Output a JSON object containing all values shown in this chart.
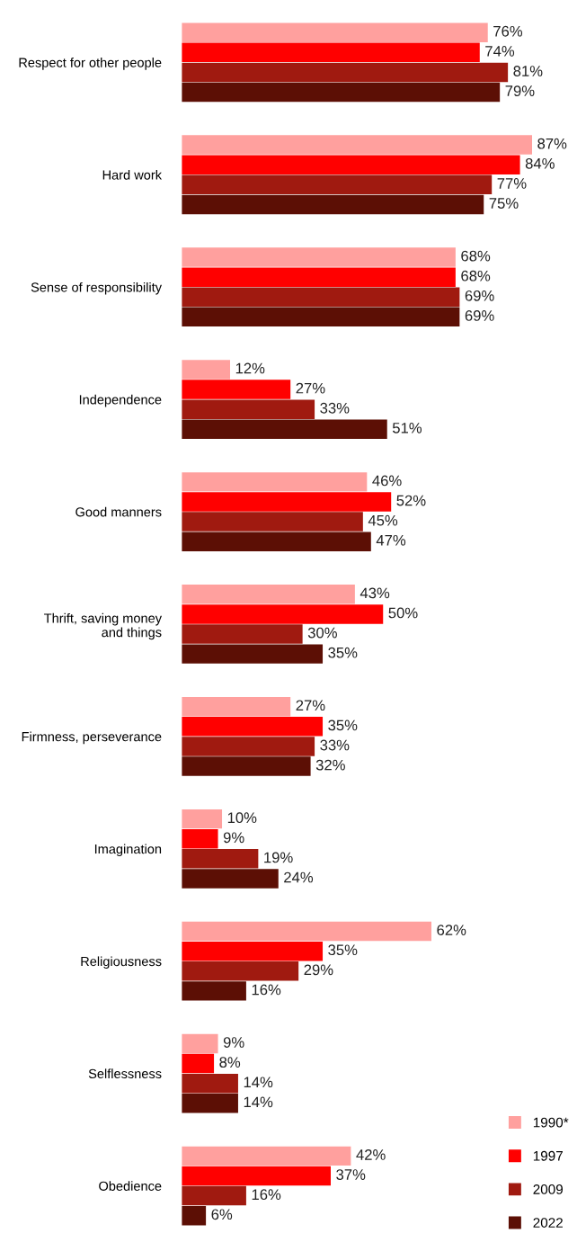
{
  "chart_data": {
    "type": "bar",
    "orientation": "horizontal",
    "categories": [
      "Respect for other people",
      "Hard work",
      "Sense of responsibility",
      "Independence",
      "Good manners",
      "Thrift, saving money\nand things",
      "Firmness, perseverance",
      "Imagination",
      "Religiousness",
      "Selflessness",
      "Obedience"
    ],
    "series": [
      {
        "name": "1990*",
        "color": "#ffa09e",
        "values": [
          76,
          87,
          68,
          12,
          46,
          43,
          27,
          10,
          62,
          9,
          42
        ],
        "value_labels": [
          "76%",
          "87%",
          "68%",
          "12%",
          "46%",
          "43%",
          "27%",
          "10%",
          "62%",
          "9%",
          "42%"
        ]
      },
      {
        "name": "1997",
        "color": "#ff0000",
        "values": [
          74,
          84,
          68,
          27,
          52,
          50,
          35,
          9,
          35,
          8,
          37
        ],
        "value_labels": [
          "74%",
          "84%",
          "68%",
          "27%",
          "52%",
          "50%",
          "35%",
          "9%",
          "35%",
          "8%",
          "37%"
        ]
      },
      {
        "name": "2009",
        "color": "#a01a10",
        "values": [
          81,
          77,
          69,
          33,
          45,
          30,
          33,
          19,
          29,
          14,
          16
        ],
        "value_labels": [
          "81%",
          "77%",
          "69%",
          "33%",
          "45%",
          "30%",
          "33%",
          "19%",
          "29%",
          "14%",
          "16%"
        ]
      },
      {
        "name": "2022",
        "color": "#5c0f05",
        "values": [
          79,
          75,
          69,
          51,
          47,
          35,
          32,
          24,
          16,
          14,
          6
        ],
        "value_labels": [
          "79%",
          "75%",
          "69%",
          "51%",
          "47%",
          "35%",
          "32%",
          "24%",
          "16%",
          "14%",
          "6%"
        ]
      }
    ],
    "grid": false,
    "legend": "bottom right",
    "tick_labels": "y"
  }
}
